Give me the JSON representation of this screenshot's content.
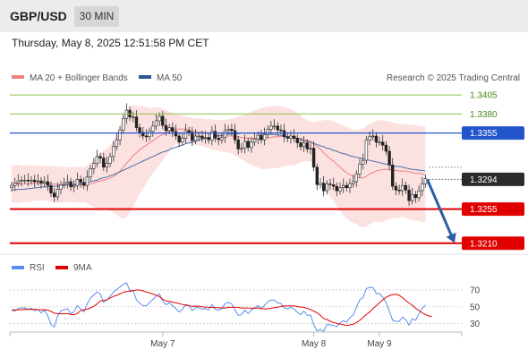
{
  "header": {
    "symbol": "GBP/USD",
    "timeframe": "30 MIN",
    "datetime": "Thursday, May 8, 2025 12:51:58 PM CET"
  },
  "legend": {
    "ma20": "MA 20 + Bollinger Bands",
    "ma50": "MA 50",
    "credit": "Research © 2025 Trading Central",
    "rsi": "RSI",
    "ma9": "9MA"
  },
  "colors": {
    "bullish": "#2e7d32",
    "bearish": "#c62828",
    "bollinger_fill": "#fbdcdc",
    "ma20": "#f08080",
    "ma50": "#4a6fa5",
    "target_line": "#e00000",
    "pivot_line": "#2255cc",
    "resistance_line": "#8bc34a",
    "arrow": "#2d5fa0",
    "rsi": "#5b8def",
    "rsi_ma": "#e00000"
  },
  "chart_data": [
    {
      "type": "candlestick",
      "title": "GBP/USD 30 MIN",
      "ylim": [
        1.3198,
        1.3418
      ],
      "x_ticks": [
        {
          "index": 46,
          "label": "May 7"
        },
        {
          "index": 92,
          "label": "May 8"
        },
        {
          "index": 112,
          "label": "May 9"
        }
      ],
      "close": [
        1.3286,
        1.3289,
        1.3292,
        1.3293,
        1.3293,
        1.3292,
        1.3293,
        1.3291,
        1.3292,
        1.3289,
        1.3291,
        1.3286,
        1.3276,
        1.3271,
        1.3281,
        1.3287,
        1.3289,
        1.3291,
        1.3284,
        1.3286,
        1.3294,
        1.329,
        1.3286,
        1.3297,
        1.3308,
        1.3315,
        1.3324,
        1.3322,
        1.331,
        1.3315,
        1.3324,
        1.3337,
        1.3346,
        1.3359,
        1.3374,
        1.3385,
        1.3376,
        1.3376,
        1.3362,
        1.3356,
        1.3351,
        1.335,
        1.3357,
        1.3364,
        1.3371,
        1.3377,
        1.3365,
        1.3358,
        1.3362,
        1.3357,
        1.3351,
        1.3343,
        1.3348,
        1.3358,
        1.3356,
        1.3345,
        1.3351,
        1.3351,
        1.3348,
        1.3349,
        1.3346,
        1.3357,
        1.3348,
        1.3346,
        1.3349,
        1.3358,
        1.336,
        1.3358,
        1.3346,
        1.3334,
        1.3335,
        1.3344,
        1.3336,
        1.3343,
        1.3347,
        1.3352,
        1.3346,
        1.3353,
        1.336,
        1.3364,
        1.3364,
        1.3359,
        1.3358,
        1.335,
        1.3348,
        1.3351,
        1.3348,
        1.3342,
        1.3337,
        1.3342,
        1.3334,
        1.3335,
        1.331,
        1.3287,
        1.3289,
        1.3279,
        1.3288,
        1.3287,
        1.3285,
        1.3279,
        1.3283,
        1.3286,
        1.3283,
        1.3288,
        1.3291,
        1.3301,
        1.3314,
        1.3319,
        1.3346,
        1.335,
        1.3351,
        1.3343,
        1.3343,
        1.3339,
        1.3331,
        1.3313,
        1.3285,
        1.328,
        1.3279,
        1.3286,
        1.328,
        1.3266,
        1.3274,
        1.327,
        1.3279,
        1.3288,
        1.3295
      ],
      "ma20": [
        1.3288,
        1.3288,
        1.3288,
        1.3288,
        1.3288,
        1.3288,
        1.3289,
        1.3289,
        1.3289,
        1.3289,
        1.3289,
        1.3289,
        1.3288,
        1.3288,
        1.3287,
        1.3287,
        1.3287,
        1.3287,
        1.3287,
        1.3287,
        1.3287,
        1.3287,
        1.3287,
        1.3287,
        1.3288,
        1.3289,
        1.3291,
        1.3292,
        1.3293,
        1.3294,
        1.3296,
        1.3298,
        1.3301,
        1.3305,
        1.331,
        1.3315,
        1.332,
        1.3325,
        1.3329,
        1.3333,
        1.3336,
        1.3339,
        1.3342,
        1.3345,
        1.3348,
        1.3351,
        1.3353,
        1.3355,
        1.3357,
        1.3359,
        1.336,
        1.336,
        1.336,
        1.336,
        1.3359,
        1.3357,
        1.3357,
        1.3356,
        1.3356,
        1.3355,
        1.3354,
        1.3353,
        1.3352,
        1.3352,
        1.3351,
        1.3351,
        1.3351,
        1.3351,
        1.335,
        1.335,
        1.3349,
        1.3349,
        1.3348,
        1.3348,
        1.3348,
        1.3348,
        1.3348,
        1.3348,
        1.3349,
        1.3349,
        1.335,
        1.335,
        1.335,
        1.335,
        1.335,
        1.3349,
        1.3348,
        1.3348,
        1.3347,
        1.3346,
        1.3345,
        1.3344,
        1.3341,
        1.3337,
        1.3334,
        1.3329,
        1.3325,
        1.3321,
        1.3318,
        1.3314,
        1.331,
        1.3306,
        1.3303,
        1.33,
        1.3298,
        1.3297,
        1.3296,
        1.3296,
        1.3298,
        1.3301,
        1.3303,
        1.3305,
        1.3306,
        1.3307,
        1.3307,
        1.3307,
        1.3306,
        1.3306,
        1.3305,
        1.3305,
        1.3305,
        1.3304,
        1.3303,
        1.3302,
        1.3302,
        1.3301,
        1.33
      ],
      "bb_upper": [
        1.3312,
        1.3313,
        1.3313,
        1.3312,
        1.3312,
        1.3312,
        1.3313,
        1.3312,
        1.3312,
        1.3312,
        1.3311,
        1.3312,
        1.3311,
        1.3312,
        1.3311,
        1.3311,
        1.331,
        1.331,
        1.331,
        1.331,
        1.331,
        1.3311,
        1.331,
        1.3312,
        1.3316,
        1.332,
        1.3326,
        1.3329,
        1.3332,
        1.3334,
        1.3339,
        1.3346,
        1.3355,
        1.3366,
        1.3378,
        1.3386,
        1.3389,
        1.3392,
        1.3391,
        1.339,
        1.339,
        1.3389,
        1.3388,
        1.3388,
        1.3389,
        1.3389,
        1.3387,
        1.3385,
        1.3383,
        1.3382,
        1.338,
        1.3379,
        1.3378,
        1.3377,
        1.3376,
        1.3375,
        1.3374,
        1.3374,
        1.3374,
        1.3373,
        1.3373,
        1.3373,
        1.3372,
        1.3372,
        1.3372,
        1.3372,
        1.3373,
        1.3374,
        1.3375,
        1.3377,
        1.3378,
        1.338,
        1.3381,
        1.3383,
        1.3385,
        1.3386,
        1.3388,
        1.3389,
        1.339,
        1.339,
        1.3391,
        1.3391,
        1.339,
        1.3389,
        1.3388,
        1.3386,
        1.3384,
        1.3381,
        1.3378,
        1.3374,
        1.3372,
        1.337,
        1.3369,
        1.337,
        1.3371,
        1.3372,
        1.3372,
        1.3372,
        1.337,
        1.3369,
        1.3367,
        1.3365,
        1.3363,
        1.3361,
        1.3359,
        1.3359,
        1.336,
        1.3361,
        1.3364,
        1.3367,
        1.3369,
        1.3371,
        1.3372,
        1.3372,
        1.3371,
        1.337,
        1.3369,
        1.3368,
        1.3367,
        1.3367,
        1.3367,
        1.3366,
        1.3366,
        1.3365,
        1.3365,
        1.3364,
        1.3363
      ],
      "bb_lower": [
        1.3264,
        1.3263,
        1.3263,
        1.3264,
        1.3264,
        1.3264,
        1.3265,
        1.3266,
        1.3266,
        1.3266,
        1.3267,
        1.3266,
        1.3265,
        1.3264,
        1.3263,
        1.3263,
        1.3264,
        1.3264,
        1.3264,
        1.3264,
        1.3264,
        1.3263,
        1.3264,
        1.3262,
        1.326,
        1.3258,
        1.3256,
        1.3255,
        1.3254,
        1.3254,
        1.3253,
        1.325,
        1.3247,
        1.3244,
        1.3242,
        1.3244,
        1.3251,
        1.3258,
        1.3267,
        1.3276,
        1.3282,
        1.3289,
        1.3296,
        1.3302,
        1.3307,
        1.3313,
        1.3319,
        1.3325,
        1.3331,
        1.3336,
        1.334,
        1.3341,
        1.3342,
        1.3343,
        1.3342,
        1.3339,
        1.334,
        1.3338,
        1.3338,
        1.3337,
        1.3335,
        1.3333,
        1.3332,
        1.3332,
        1.333,
        1.333,
        1.3329,
        1.3328,
        1.3325,
        1.3323,
        1.332,
        1.3318,
        1.3315,
        1.3313,
        1.3311,
        1.331,
        1.3308,
        1.3307,
        1.3308,
        1.3308,
        1.3309,
        1.3309,
        1.331,
        1.3311,
        1.3312,
        1.3312,
        1.3312,
        1.3315,
        1.3316,
        1.3318,
        1.3318,
        1.3318,
        1.3313,
        1.3304,
        1.3297,
        1.3286,
        1.3278,
        1.327,
        1.3266,
        1.3259,
        1.3253,
        1.3247,
        1.3243,
        1.3239,
        1.3237,
        1.3235,
        1.3232,
        1.3231,
        1.3232,
        1.3235,
        1.3237,
        1.3239,
        1.3238,
        1.3238,
        1.324,
        1.3242,
        1.3243,
        1.3244,
        1.3243,
        1.3245,
        1.3243,
        1.3242,
        1.324,
        1.324,
        1.3239,
        1.3238,
        1.3237
      ],
      "ma50": [
        1.328,
        1.328,
        1.3281,
        1.3281,
        1.3281,
        1.3282,
        1.3282,
        1.3283,
        1.3283,
        1.3284,
        1.3284,
        1.3284,
        1.3285,
        1.3285,
        1.3285,
        1.3286,
        1.3286,
        1.3287,
        1.3287,
        1.3287,
        1.3288,
        1.3288,
        1.3289,
        1.329,
        1.3291,
        1.3292,
        1.3293,
        1.3295,
        1.3296,
        1.3297,
        1.3299,
        1.33,
        1.3302,
        1.3304,
        1.3306,
        1.3308,
        1.331,
        1.3312,
        1.3314,
        1.3316,
        1.3318,
        1.332,
        1.3322,
        1.3324,
        1.3326,
        1.3328,
        1.333,
        1.3331,
        1.3333,
        1.3335,
        1.3336,
        1.3338,
        1.3339,
        1.3341,
        1.3342,
        1.3343,
        1.3344,
        1.3346,
        1.3347,
        1.3348,
        1.3349,
        1.335,
        1.3351,
        1.3351,
        1.3352,
        1.3353,
        1.3353,
        1.3354,
        1.3354,
        1.3354,
        1.3355,
        1.3355,
        1.3355,
        1.3355,
        1.3355,
        1.3355,
        1.3354,
        1.3354,
        1.3354,
        1.3353,
        1.3353,
        1.3352,
        1.3352,
        1.3351,
        1.335,
        1.335,
        1.3349,
        1.3348,
        1.3347,
        1.3345,
        1.3344,
        1.3343,
        1.3341,
        1.334,
        1.3338,
        1.3337,
        1.3335,
        1.3334,
        1.3332,
        1.3331,
        1.3329,
        1.3328,
        1.3327,
        1.3325,
        1.3324,
        1.3323,
        1.3322,
        1.3321,
        1.332,
        1.3319,
        1.3318,
        1.3317,
        1.3316,
        1.3315,
        1.3314,
        1.3313,
        1.3312,
        1.3311,
        1.3311,
        1.331,
        1.3309,
        1.3308,
        1.3307,
        1.3307,
        1.3306,
        1.3306,
        1.3305
      ],
      "levels": [
        {
          "value": 1.3405,
          "label": "1.3405",
          "kind": "resistance"
        },
        {
          "value": 1.338,
          "label": "1.3380",
          "kind": "resistance"
        },
        {
          "value": 1.3355,
          "label": "1.3355",
          "kind": "pivot"
        },
        {
          "value": 1.3294,
          "label": "1.3294",
          "kind": "last"
        },
        {
          "value": 1.3255,
          "label": "1.3255",
          "kind": "target"
        },
        {
          "value": 1.321,
          "label": "1.3210",
          "kind": "target"
        }
      ],
      "forecast_arrow": {
        "from_index": 126,
        "from": 1.3294,
        "to_index": 135,
        "to": 1.321
      }
    },
    {
      "type": "line",
      "title": "RSI",
      "ylim": [
        22,
        85
      ],
      "y_ticks": [
        30,
        50,
        70
      ],
      "series": [
        {
          "name": "RSI",
          "values": [
            45.9,
            44.9,
            47.8,
            48.7,
            48.7,
            47.1,
            48.1,
            45.4,
            46.7,
            42.7,
            46.0,
            39.4,
            28.8,
            25.9,
            38.9,
            45.3,
            46.4,
            48.0,
            41.6,
            43.9,
            51.6,
            47.4,
            44.0,
            53.5,
            60.4,
            64.0,
            67.8,
            65.4,
            55.2,
            58.0,
            62.7,
            67.7,
            70.5,
            73.8,
            76.7,
            78.5,
            69.5,
            69.5,
            57.9,
            54.5,
            51.5,
            51.1,
            55.0,
            58.8,
            62.6,
            65.4,
            56.8,
            52.4,
            54.6,
            51.4,
            48.0,
            43.8,
            46.8,
            52.8,
            51.6,
            45.5,
            49.0,
            49.0,
            47.3,
            47.9,
            46.1,
            52.6,
            47.2,
            45.8,
            48.0,
            53.7,
            55.2,
            53.6,
            46.1,
            39.9,
            40.5,
            46.2,
            42.0,
            46.2,
            48.7,
            51.6,
            47.6,
            51.9,
            56.0,
            58.0,
            58.0,
            54.6,
            53.9,
            48.8,
            47.4,
            49.6,
            47.5,
            43.5,
            40.5,
            44.7,
            39.6,
            40.4,
            28.3,
            21.2,
            23.3,
            20.5,
            28.8,
            28.4,
            27.5,
            26.2,
            30.7,
            33.4,
            31.7,
            37.2,
            40.3,
            49.4,
            58.3,
            61.1,
            71.8,
            72.9,
            73.2,
            65.8,
            65.8,
            61.4,
            55.1,
            44.9,
            34.0,
            32.8,
            32.6,
            37.7,
            34.6,
            28.0,
            35.6,
            33.8,
            41.5,
            48.2,
            52.1
          ]
        },
        {
          "name": "9MA",
          "values": [
            46.3,
            46.3,
            46.3,
            46.6,
            46.9,
            47.0,
            47.1,
            46.9,
            46.7,
            46.5,
            46.6,
            46.0,
            44.6,
            42.4,
            41.8,
            41.7,
            41.7,
            41.9,
            40.9,
            40.5,
            42.1,
            45.6,
            46.4,
            47.1,
            48.7,
            50.6,
            53.3,
            57.0,
            57.5,
            58.3,
            60.6,
            62.5,
            63.6,
            65.5,
            67.3,
            68.3,
            68.5,
            69.3,
            70.1,
            70.0,
            69.0,
            67.5,
            66.6,
            65.3,
            63.7,
            62.0,
            59.1,
            57.0,
            56.5,
            55.6,
            54.7,
            53.8,
            52.8,
            51.9,
            51.3,
            50.4,
            50.8,
            50.7,
            50.1,
            49.7,
            49.4,
            49.2,
            49.0,
            49.0,
            48.6,
            48.6,
            49.2,
            49.6,
            49.4,
            49.1,
            48.6,
            48.6,
            48.4,
            48.3,
            48.3,
            48.6,
            48.0,
            47.5,
            47.5,
            48.3,
            48.9,
            49.4,
            50.4,
            50.9,
            51.0,
            51.0,
            51.0,
            50.3,
            49.7,
            49.3,
            48.1,
            46.9,
            44.8,
            42.8,
            39.9,
            36.1,
            34.9,
            32.7,
            31.3,
            30.1,
            29.4,
            28.6,
            27.7,
            28.4,
            29.1,
            31.2,
            33.9,
            37.4,
            40.8,
            43.8,
            47.7,
            51.1,
            54.8,
            58.2,
            61.3,
            63.2,
            64.5,
            64.9,
            63.6,
            61.0,
            57.4,
            54.5,
            51.8,
            48.3,
            45.6,
            42.7,
            40.8,
            39.1,
            38.4
          ]
        }
      ]
    }
  ]
}
